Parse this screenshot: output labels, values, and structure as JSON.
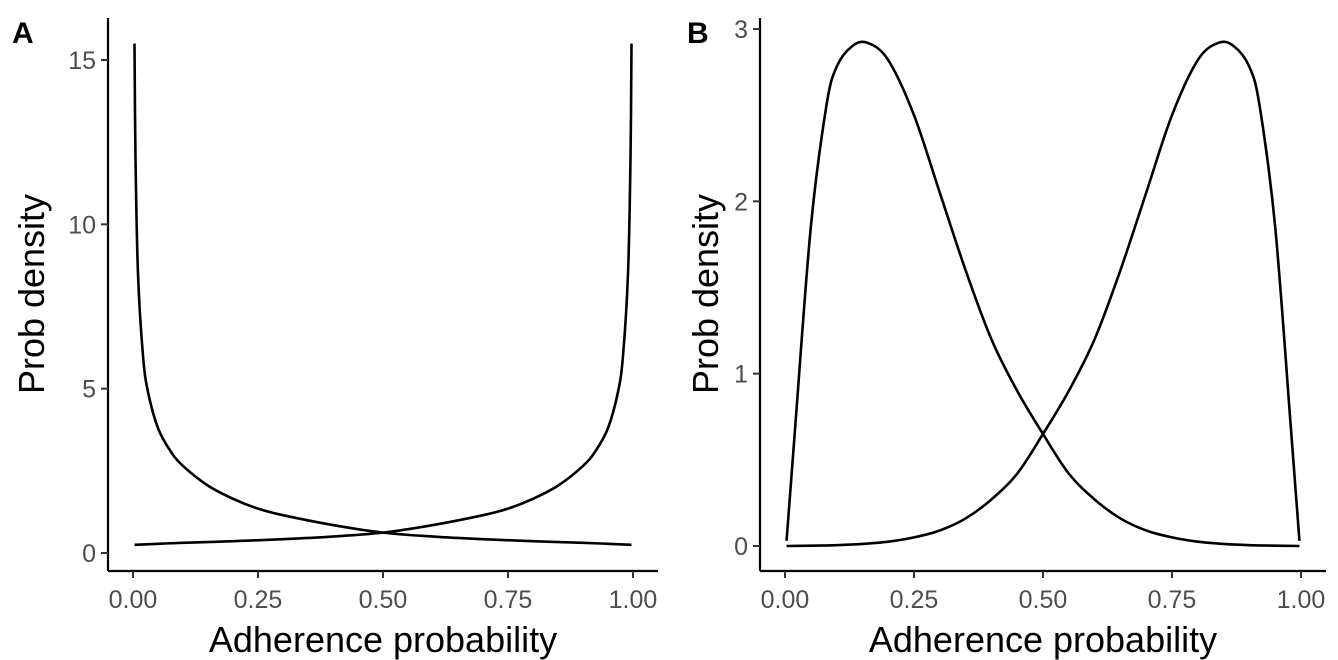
{
  "chart_data": [
    {
      "type": "line",
      "panel_label": "A",
      "xlabel": "Adherence probability",
      "ylabel": "Prob density",
      "xlim": [
        0,
        1
      ],
      "ylim": [
        0,
        16
      ],
      "xticks": [
        0,
        0.25,
        0.5,
        0.75,
        1
      ],
      "xtick_labels": [
        "0.00",
        "0.25",
        "0.50",
        "0.75",
        "1.00"
      ],
      "yticks": [
        0,
        5,
        10,
        15
      ],
      "ytick_labels": [
        "0",
        "5",
        "10",
        "15"
      ],
      "grid": false,
      "series": [
        {
          "x": [
            0.003,
            0.005,
            0.01,
            0.02,
            0.03,
            0.05,
            0.075,
            0.1,
            0.15,
            0.2,
            0.25,
            0.3,
            0.4,
            0.5,
            0.6,
            0.7,
            0.8,
            0.9,
            0.95,
            0.997
          ],
          "values": [
            15.5,
            12.0,
            8.5,
            6.0,
            4.9,
            3.8,
            3.1,
            2.65,
            2.05,
            1.65,
            1.35,
            1.15,
            0.85,
            0.62,
            0.5,
            0.42,
            0.36,
            0.31,
            0.28,
            0.25
          ]
        },
        {
          "x": [
            0.003,
            0.05,
            0.1,
            0.2,
            0.3,
            0.4,
            0.5,
            0.6,
            0.7,
            0.75,
            0.8,
            0.85,
            0.9,
            0.925,
            0.95,
            0.97,
            0.98,
            0.99,
            0.995,
            0.997
          ],
          "values": [
            0.25,
            0.28,
            0.31,
            0.36,
            0.42,
            0.5,
            0.62,
            0.85,
            1.15,
            1.35,
            1.65,
            2.05,
            2.65,
            3.1,
            3.8,
            4.9,
            6.0,
            8.5,
            12.0,
            15.5
          ]
        }
      ]
    },
    {
      "type": "line",
      "panel_label": "B",
      "xlabel": "Adherence probability",
      "ylabel": "Prob density",
      "xlim": [
        0,
        1
      ],
      "ylim": [
        0,
        3
      ],
      "xticks": [
        0,
        0.25,
        0.5,
        0.75,
        1
      ],
      "xtick_labels": [
        "0.00",
        "0.25",
        "0.50",
        "0.75",
        "1.00"
      ],
      "yticks": [
        0,
        1,
        2,
        3
      ],
      "ytick_labels": [
        "0",
        "1",
        "2",
        "3"
      ],
      "grid": false,
      "series": [
        {
          "x": [
            0.003,
            0.02,
            0.05,
            0.08,
            0.1,
            0.13,
            0.16,
            0.2,
            0.25,
            0.3,
            0.35,
            0.4,
            0.45,
            0.5,
            0.55,
            0.6,
            0.65,
            0.7,
            0.75,
            0.8,
            0.85,
            0.9,
            0.95,
            0.997
          ],
          "values": [
            0.03,
            0.7,
            1.85,
            2.55,
            2.78,
            2.9,
            2.92,
            2.82,
            2.5,
            2.05,
            1.6,
            1.2,
            0.9,
            0.65,
            0.42,
            0.27,
            0.16,
            0.09,
            0.05,
            0.025,
            0.012,
            0.005,
            0.002,
            0.0
          ]
        },
        {
          "x": [
            0.003,
            0.05,
            0.1,
            0.15,
            0.2,
            0.25,
            0.3,
            0.35,
            0.4,
            0.45,
            0.5,
            0.55,
            0.6,
            0.65,
            0.7,
            0.75,
            0.8,
            0.84,
            0.87,
            0.9,
            0.92,
            0.95,
            0.98,
            0.997
          ],
          "values": [
            0.0,
            0.002,
            0.005,
            0.012,
            0.025,
            0.05,
            0.09,
            0.16,
            0.27,
            0.42,
            0.65,
            0.9,
            1.2,
            1.6,
            2.05,
            2.5,
            2.82,
            2.92,
            2.9,
            2.78,
            2.55,
            1.85,
            0.7,
            0.03
          ]
        }
      ]
    }
  ]
}
